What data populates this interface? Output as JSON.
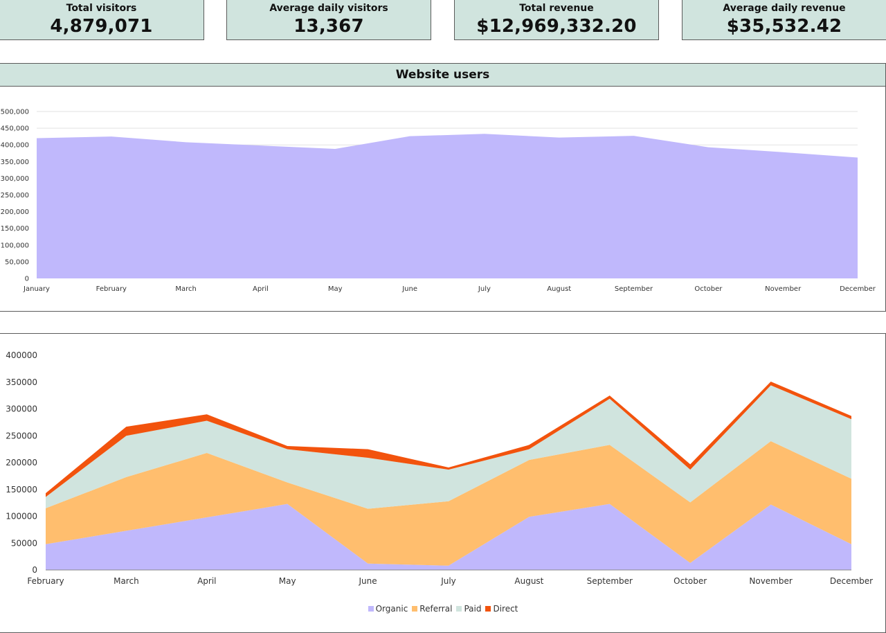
{
  "kpis": [
    {
      "label": "Total visitors",
      "value": "4,879,071"
    },
    {
      "label": "Average daily visitors",
      "value": "13,367"
    },
    {
      "label": "Total revenue",
      "value": "$12,969,332.20"
    },
    {
      "label": "Average daily revenue",
      "value": "$35,532.42"
    }
  ],
  "chart_data": [
    {
      "type": "area",
      "title": "Website users",
      "xlabel": "",
      "ylabel": "",
      "categories": [
        "January",
        "February",
        "March",
        "April",
        "May",
        "June",
        "July",
        "August",
        "September",
        "October",
        "November",
        "December"
      ],
      "ylim": [
        0,
        500000
      ],
      "yticks": [
        "0",
        "50,000",
        "100,000",
        "150,000",
        "200,000",
        "250,000",
        "300,000",
        "350,000",
        "400,000",
        "450,000",
        "500,000"
      ],
      "values": [
        420000,
        425000,
        408000,
        398000,
        388000,
        426000,
        433000,
        422000,
        427000,
        393000,
        378000,
        362000
      ],
      "grid": true,
      "color": "#c0b8fc"
    },
    {
      "type": "area",
      "stacked": true,
      "title": "",
      "xlabel": "",
      "ylabel": "",
      "categories": [
        "February",
        "March",
        "April",
        "May",
        "June",
        "July",
        "August",
        "September",
        "October",
        "November",
        "December"
      ],
      "ylim": [
        0,
        400000
      ],
      "yticks": [
        "0",
        "50000",
        "100000",
        "150000",
        "200000",
        "250000",
        "300000",
        "350000",
        "400000"
      ],
      "grid": false,
      "legend_position": "bottom",
      "series": [
        {
          "name": "Organic",
          "color": "#c0b8fc",
          "values": [
            48000,
            73000,
            98000,
            123000,
            12000,
            8000,
            99000,
            123000,
            13000,
            122000,
            48000
          ]
        },
        {
          "name": "Referral",
          "color": "#ffbe6e",
          "values": [
            67000,
            100000,
            120000,
            40000,
            102000,
            120000,
            106000,
            110000,
            113000,
            118000,
            122000
          ]
        },
        {
          "name": "Paid",
          "color": "#d0e4de",
          "values": [
            21000,
            77000,
            60000,
            62000,
            95000,
            59000,
            20000,
            86000,
            61000,
            104000,
            111000
          ]
        },
        {
          "name": "Direct",
          "color": "#f2530d",
          "values": [
            7000,
            17000,
            12000,
            6000,
            16000,
            4000,
            8000,
            6000,
            10000,
            7000,
            6000
          ]
        }
      ]
    }
  ]
}
